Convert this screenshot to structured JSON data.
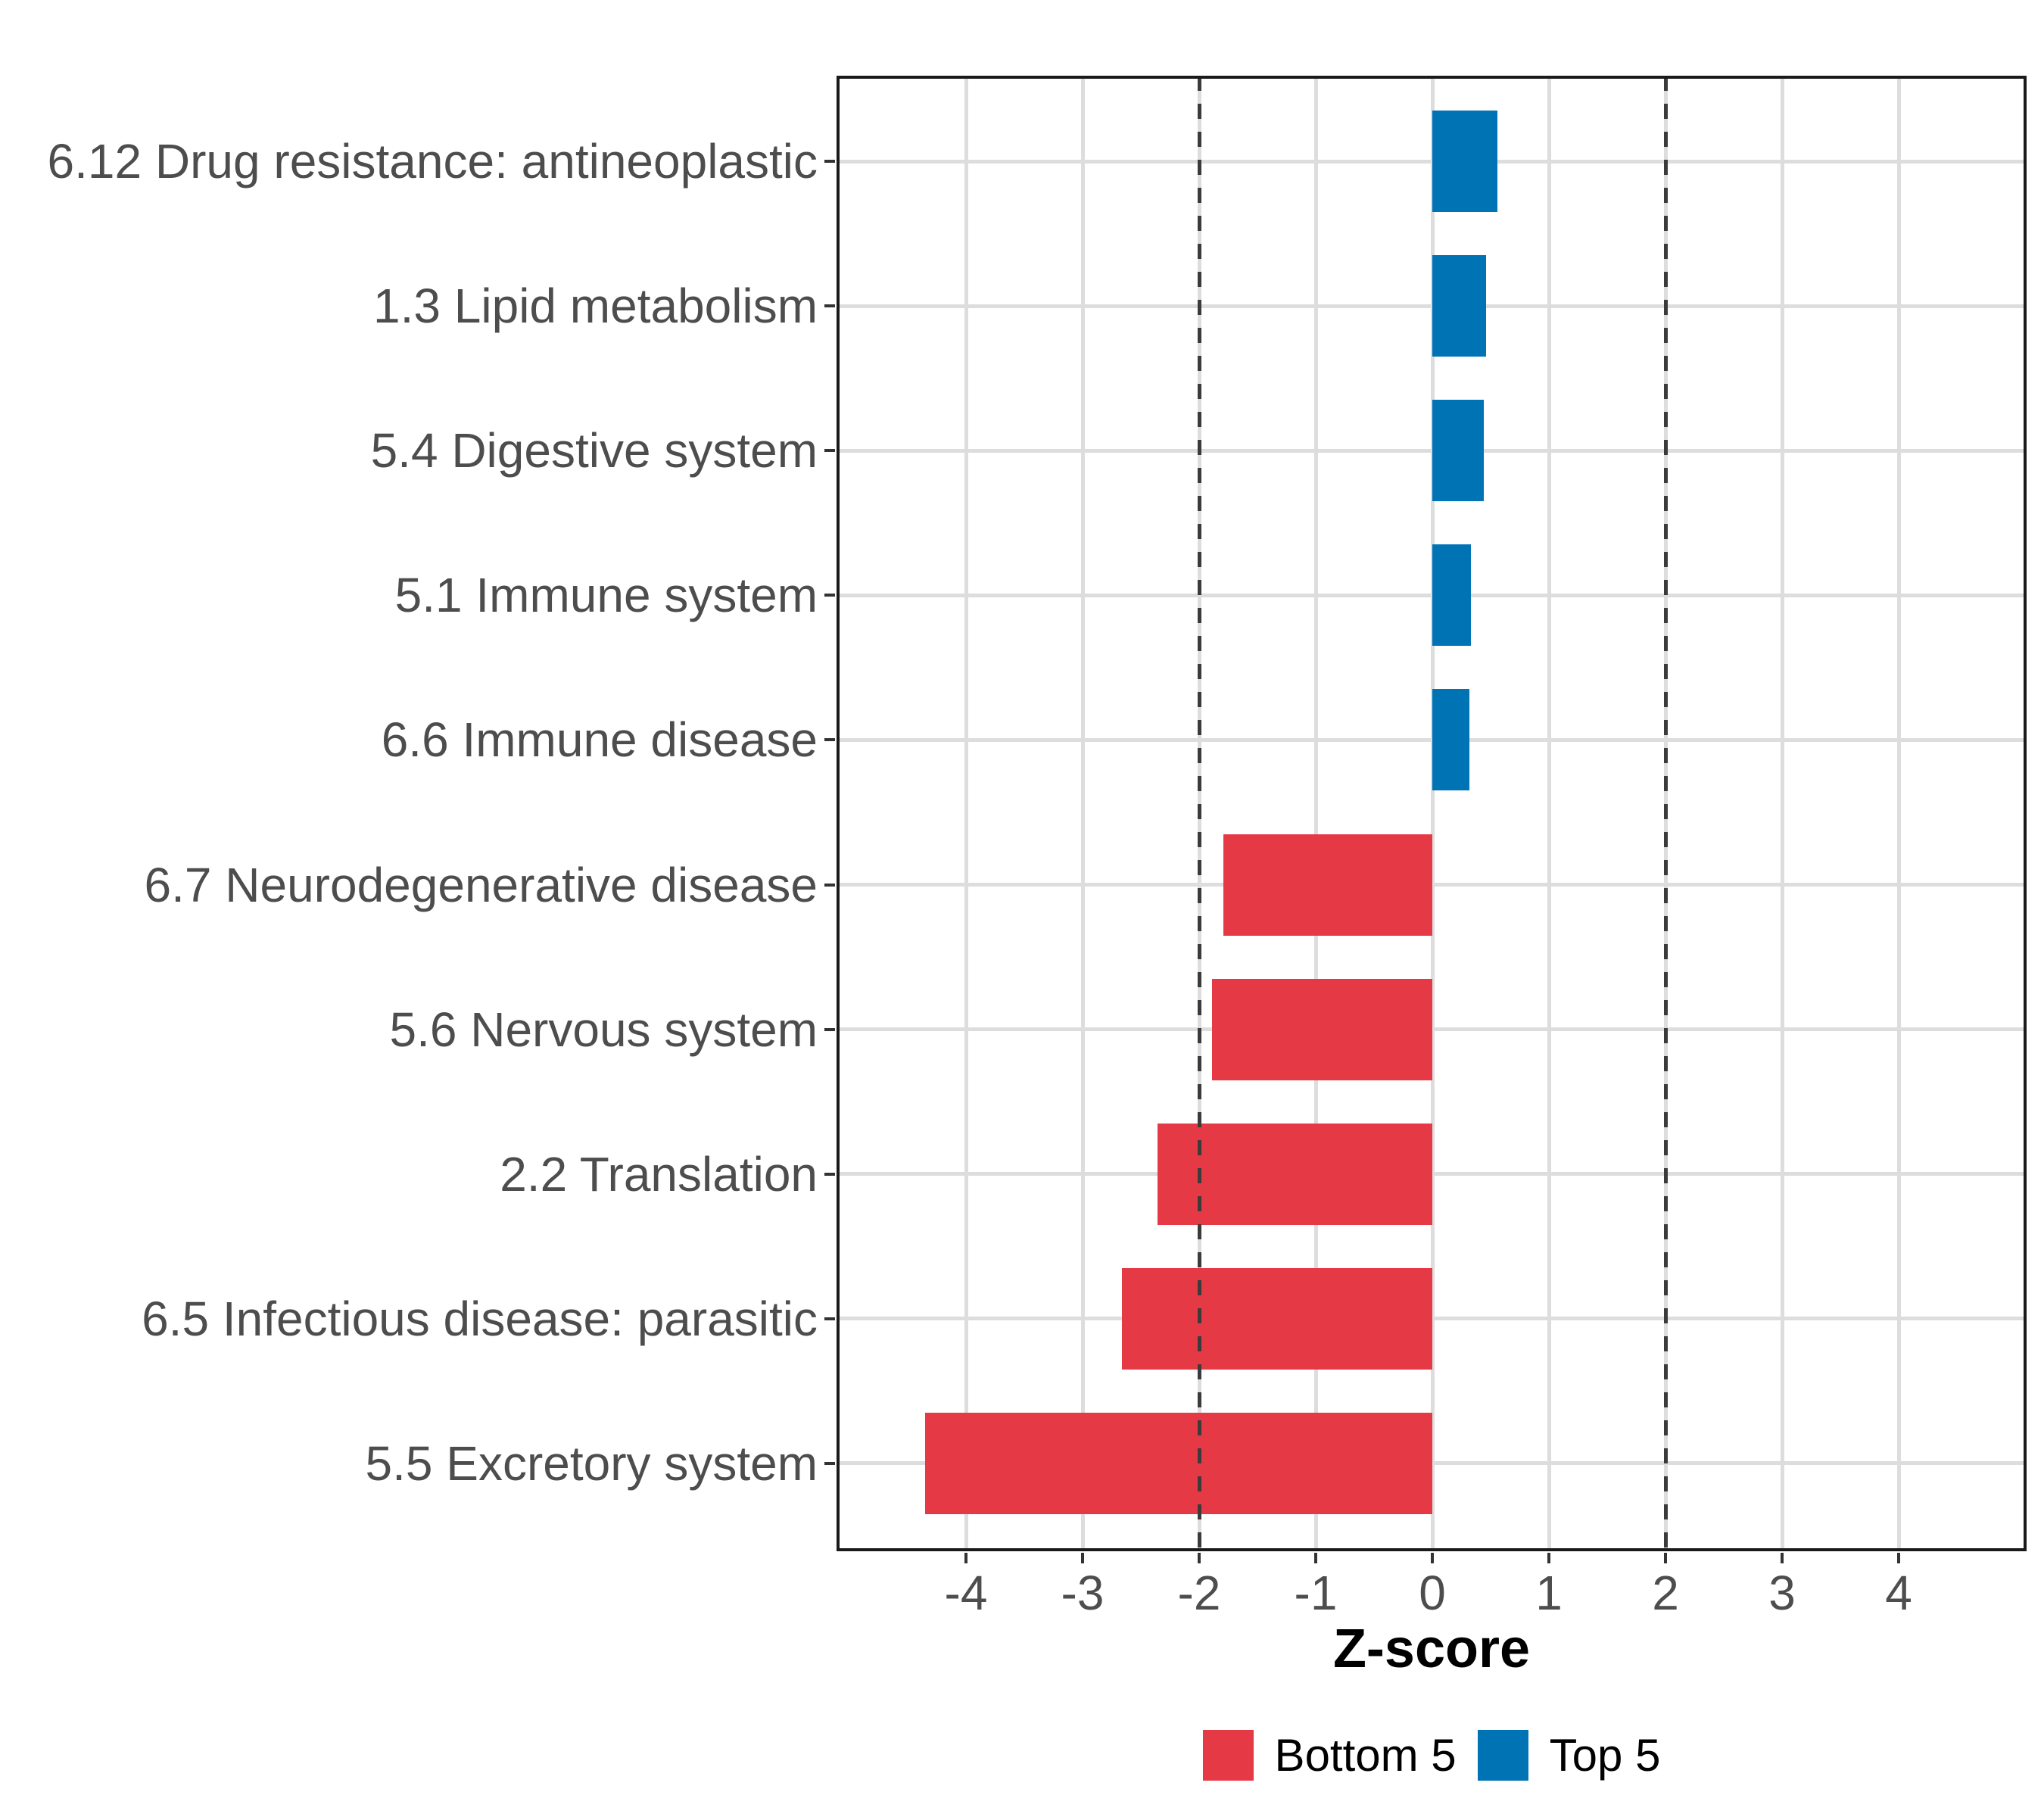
{
  "chart_data": {
    "type": "bar",
    "orientation": "horizontal",
    "title": "",
    "xlabel": "Z-score",
    "ylabel": "",
    "xlim": [
      -5.1,
      5.1
    ],
    "x_ticks": [
      -4,
      -3,
      -2,
      -1,
      0,
      1,
      2,
      3,
      4
    ],
    "reference_lines": [
      -2,
      2
    ],
    "grid": "major-only",
    "legend_position": "bottom",
    "categories": [
      "6.12 Drug resistance: antineoplastic",
      "1.3 Lipid metabolism",
      "5.4 Digestive system",
      "5.1 Immune system",
      "6.6 Immune disease",
      "6.7 Neurodegenerative disease",
      "5.6 Nervous system",
      "2.2 Translation",
      "6.5 Infectious disease: parasitic",
      "5.5 Excretory system"
    ],
    "values": [
      0.56,
      0.46,
      0.44,
      0.33,
      0.32,
      -1.79,
      -1.89,
      -2.36,
      -2.66,
      -4.35
    ],
    "groups": [
      "top5",
      "top5",
      "top5",
      "top5",
      "top5",
      "bottom5",
      "bottom5",
      "bottom5",
      "bottom5",
      "bottom5"
    ],
    "legend": {
      "entries": [
        {
          "label": "Bottom 5",
          "color": "#E63946",
          "group": "bottom5"
        },
        {
          "label": "Top 5",
          "color": "#0073B4",
          "group": "top5"
        }
      ]
    },
    "colors": {
      "bottom5": "#E63946",
      "top5": "#0073B4",
      "grid": "#DDDDDD",
      "axis_text": "#4D4D4D",
      "tick": "#333333",
      "reference_line": "#3B3B3B",
      "panel_border": "#1A1A1A",
      "background": "#FFFFFF"
    }
  }
}
